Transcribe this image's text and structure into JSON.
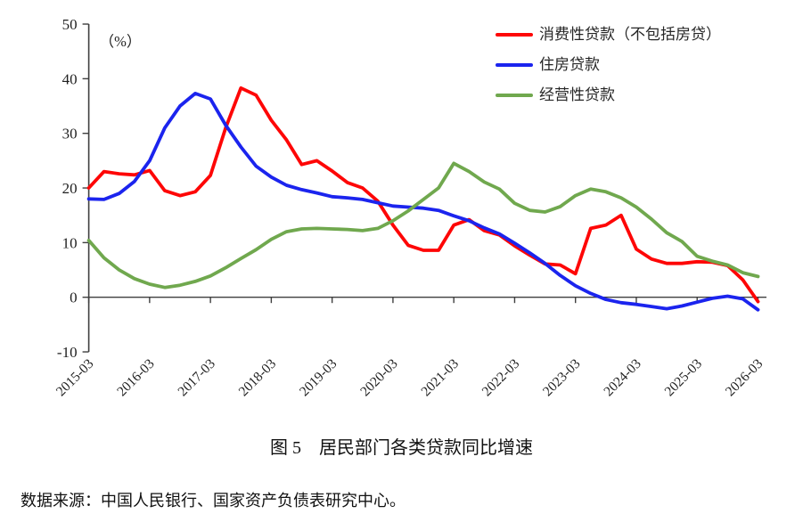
{
  "figure": {
    "title": "图 5　居民部门各类贷款同比增速",
    "source": "数据来源：中国人民银行、国家资产负债表研究中心。"
  },
  "chart_data": {
    "type": "line",
    "title": "图 5　居民部门各类贷款同比增速",
    "unit_label": "（%）",
    "xlabel": "",
    "ylabel": "%",
    "ylim": [
      -10,
      50
    ],
    "y_ticks": [
      50,
      40,
      30,
      20,
      10,
      0,
      -10
    ],
    "grid": false,
    "legend_position": "top-right",
    "x_tick_labels": [
      "2015-03",
      "2016-03",
      "2017-03",
      "2018-03",
      "2019-03",
      "2020-03",
      "2021-03",
      "2022-03",
      "2023-03",
      "2024-03",
      "2025-03",
      "2026-03"
    ],
    "x": [
      "2015-03",
      "2015-06",
      "2015-09",
      "2015-12",
      "2016-03",
      "2016-06",
      "2016-09",
      "2016-12",
      "2017-03",
      "2017-06",
      "2017-09",
      "2017-12",
      "2018-03",
      "2018-06",
      "2018-09",
      "2018-12",
      "2019-03",
      "2019-06",
      "2019-09",
      "2019-12",
      "2020-03",
      "2020-06",
      "2020-09",
      "2020-12",
      "2021-03",
      "2021-06",
      "2021-09",
      "2021-12",
      "2022-03",
      "2022-06",
      "2022-09",
      "2022-12",
      "2023-03",
      "2023-06",
      "2023-09",
      "2023-12",
      "2024-03",
      "2024-06",
      "2024-09",
      "2024-12",
      "2025-03",
      "2025-06",
      "2025-09",
      "2025-12",
      "2026-03"
    ],
    "series": [
      {
        "name": "消费性贷款（不包括房贷）",
        "color": "#fe0606",
        "values": [
          20.0,
          23.0,
          22.6,
          22.4,
          23.2,
          19.5,
          18.6,
          19.3,
          22.3,
          31.0,
          38.3,
          37.0,
          32.4,
          28.8,
          24.3,
          25.0,
          23.1,
          21.0,
          20.0,
          17.6,
          13.2,
          9.5,
          8.6,
          8.6,
          13.2,
          14.2,
          12.2,
          11.4,
          9.4,
          7.7,
          6.1,
          5.9,
          4.3,
          12.6,
          13.2,
          15.0,
          8.8,
          7.0,
          6.2,
          6.2,
          6.5,
          6.4,
          5.8,
          3.2,
          -0.8
        ]
      },
      {
        "name": "住房贷款",
        "color": "#1b24ee",
        "values": [
          18.0,
          17.9,
          19.0,
          21.2,
          25.0,
          31.0,
          35.0,
          37.3,
          36.3,
          31.5,
          27.5,
          24.0,
          22.0,
          20.5,
          19.7,
          19.1,
          18.4,
          18.2,
          17.9,
          17.3,
          16.7,
          16.5,
          16.3,
          15.9,
          14.9,
          14.0,
          12.7,
          11.6,
          9.9,
          8.1,
          6.2,
          4.0,
          2.1,
          0.7,
          -0.4,
          -1.0,
          -1.3,
          -1.7,
          -2.1,
          -1.6,
          -0.9,
          -0.2,
          0.2,
          -0.3,
          -2.3
        ]
      },
      {
        "name": "经营性贷款",
        "color": "#70a84e",
        "values": [
          10.4,
          7.2,
          5.0,
          3.4,
          2.4,
          1.8,
          2.2,
          2.9,
          3.9,
          5.4,
          7.1,
          8.7,
          10.6,
          12.0,
          12.5,
          12.6,
          12.5,
          12.4,
          12.2,
          12.6,
          14.0,
          15.8,
          17.9,
          20.0,
          24.5,
          23.0,
          21.1,
          19.8,
          17.2,
          15.9,
          15.6,
          16.6,
          18.6,
          19.8,
          19.3,
          18.2,
          16.5,
          14.3,
          11.8,
          10.2,
          7.5,
          6.6,
          5.9,
          4.5,
          3.8
        ]
      }
    ]
  }
}
